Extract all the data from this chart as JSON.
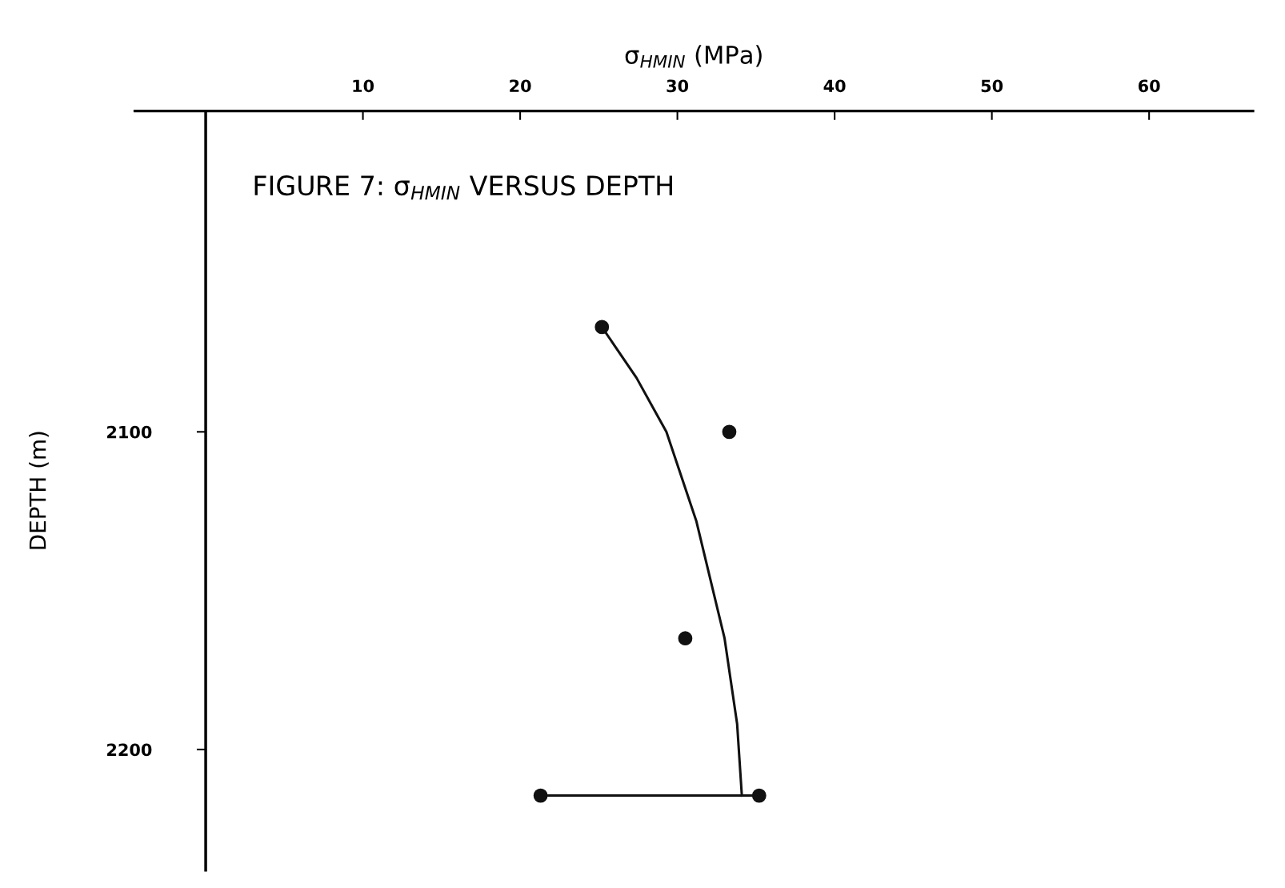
{
  "chart_data": {
    "type": "scatter",
    "title": "FIGURE 7: σ$_{HMIN}$ VERSUS DEPTH",
    "xlabel": "σ$_{HMIN}$ (MPa)",
    "ylabel": "DEPTH (m)",
    "series": [
      {
        "color": "#111111",
        "marker": "circle",
        "x": [
          25.2,
          33.3,
          30.5,
          21.3,
          35.2
        ],
        "values": [
          2067,
          2100,
          2165,
          2214.5,
          2214.5
        ]
      },
      {
        "type": "line",
        "color": "#111111",
        "x": [
          25.2,
          27.4,
          29.3,
          31.2,
          33.0,
          33.8,
          34.1
        ],
        "values": [
          2067,
          2083,
          2100,
          2128,
          2165,
          2192,
          2214.5
        ]
      },
      {
        "type": "line",
        "color": "#111111",
        "x": [
          21.3,
          35.2
        ],
        "values": [
          2214.5,
          2214.5
        ]
      }
    ],
    "xlim": [
      -4.5,
      66.6
    ],
    "xticks": [
      10,
      20,
      30,
      40,
      50,
      60
    ],
    "ylim": [
      2238,
      1999
    ],
    "yticks": [
      2100,
      2200
    ],
    "grid": false,
    "legend": false
  }
}
